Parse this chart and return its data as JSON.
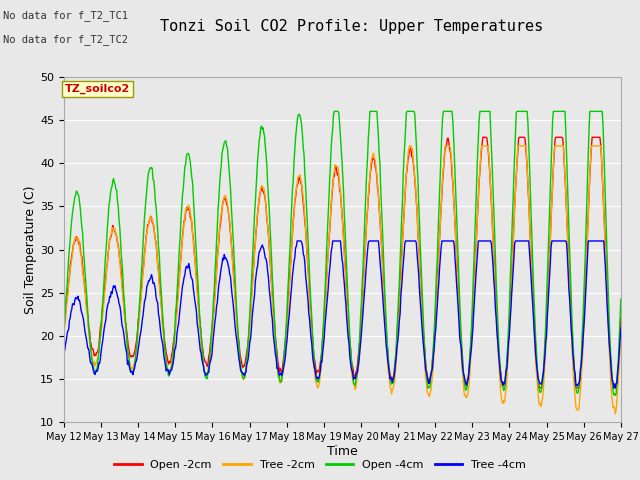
{
  "title": "Tonzi Soil CO2 Profile: Upper Temperatures",
  "xlabel": "Time",
  "ylabel": "Soil Temperature (C)",
  "ylim": [
    10,
    50
  ],
  "legend_labels": [
    "Open -2cm",
    "Tree -2cm",
    "Open -4cm",
    "Tree -4cm"
  ],
  "legend_colors": [
    "#ff0000",
    "#ffa500",
    "#00cc00",
    "#0000ff"
  ],
  "bg_color": "#e8e8e8",
  "annotations": [
    "No data for f_T2_TC1",
    "No data for f_T2_TC2"
  ],
  "inset_label": "TZ_soilco2",
  "x_tick_labels": [
    "May 12",
    "May 13",
    "May 14",
    "May 15",
    "May 16",
    "May 17",
    "May 18",
    "May 19",
    "May 20",
    "May 21",
    "May 22",
    "May 23",
    "May 24",
    "May 25",
    "May 26",
    "May 27"
  ],
  "yticks": [
    10,
    15,
    20,
    25,
    30,
    35,
    40,
    45,
    50
  ]
}
